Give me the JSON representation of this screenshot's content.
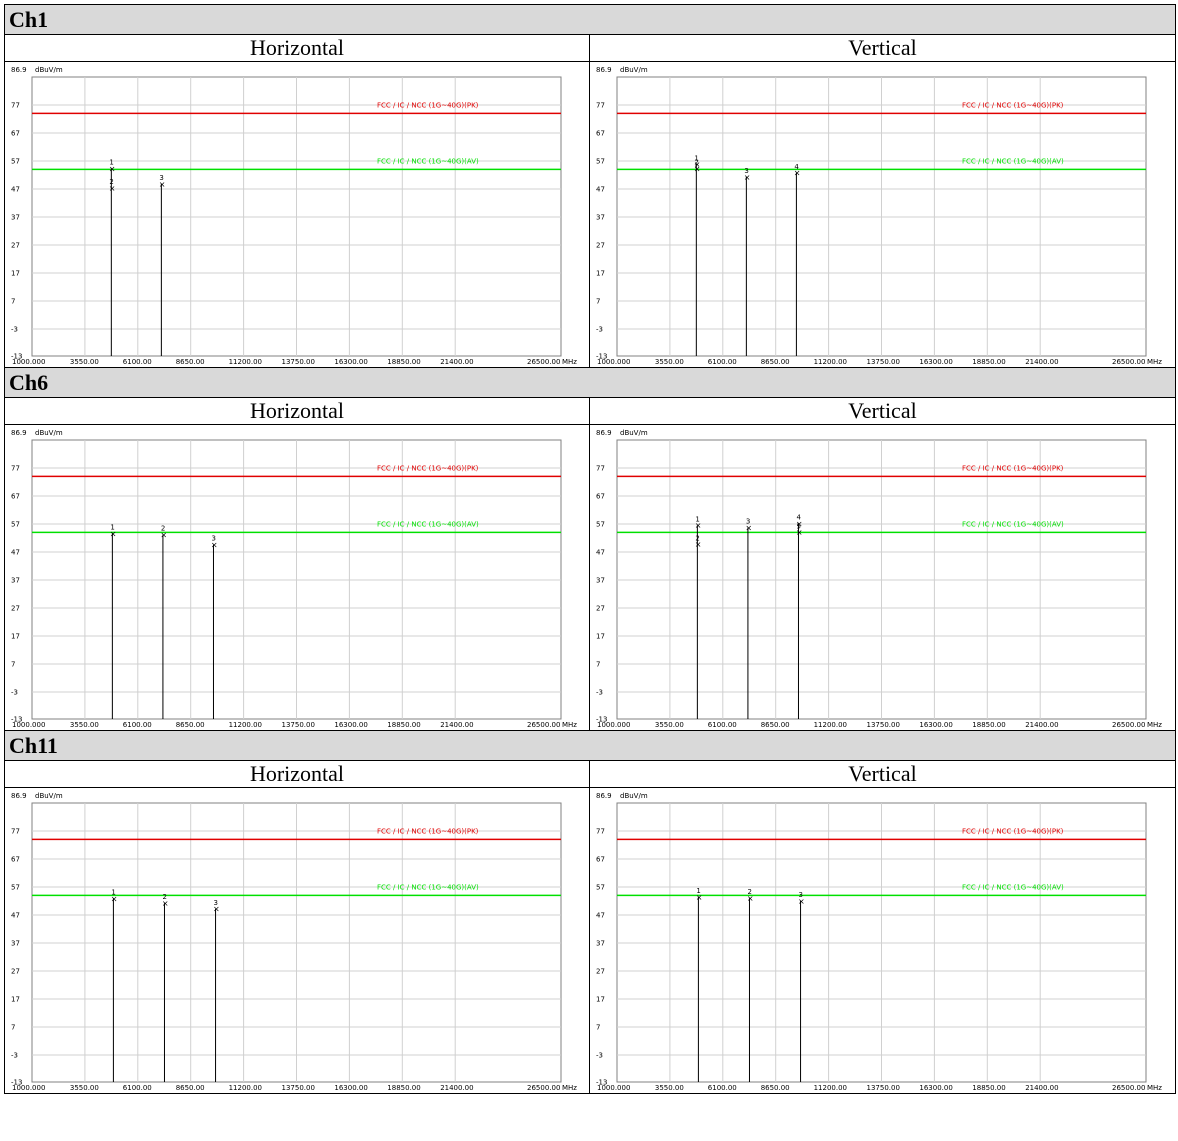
{
  "chart_data": [
    {
      "channel": "Ch1",
      "polarization": "Horizontal",
      "type": "scatter",
      "y_unit": "dBuV/m",
      "x_unit": "MHz",
      "y_top_label": "86.9",
      "yticks": [
        "77",
        "67",
        "57",
        "47",
        "37",
        "27",
        "17",
        "7",
        "-3",
        "-13"
      ],
      "ytick_values": [
        77,
        67,
        57,
        47,
        37,
        27,
        17,
        7,
        -3,
        -13
      ],
      "xticks": [
        "1000.000",
        "3550.00",
        "6100.00",
        "8650.00",
        "11200.00",
        "13750.00",
        "16300.00",
        "18850.00",
        "21400.00",
        "26500.00"
      ],
      "xtick_values": [
        1000,
        3550,
        6100,
        8650,
        11200,
        13750,
        16300,
        18850,
        21400,
        26500
      ],
      "xlim": [
        1000,
        26500
      ],
      "ylim": [
        -13,
        86.9
      ],
      "limit_lines": [
        {
          "label": "FCC / IC / NCC (1G~40G)(PK)",
          "value": 74,
          "color": "#e00000"
        },
        {
          "label": "FCC / IC / NCC (1G~40G)(AV)",
          "value": 54,
          "color": "#00e000"
        }
      ],
      "markers": [
        {
          "id": "1",
          "x": 4824,
          "y": 54.3
        },
        {
          "id": "2",
          "x": 4824,
          "y": 47.3
        },
        {
          "id": "3",
          "x": 7236,
          "y": 48.8
        }
      ]
    },
    {
      "channel": "Ch1",
      "polarization": "Vertical",
      "type": "scatter",
      "y_unit": "dBuV/m",
      "x_unit": "MHz",
      "y_top_label": "86.9",
      "yticks": [
        "77",
        "67",
        "57",
        "47",
        "37",
        "27",
        "17",
        "7",
        "-3",
        "-13"
      ],
      "ytick_values": [
        77,
        67,
        57,
        47,
        37,
        27,
        17,
        7,
        -3,
        -13
      ],
      "xticks": [
        "1000.000",
        "3550.00",
        "6100.00",
        "8650.00",
        "11200.00",
        "13750.00",
        "16300.00",
        "18850.00",
        "21400.00",
        "26500.00"
      ],
      "xtick_values": [
        1000,
        3550,
        6100,
        8650,
        11200,
        13750,
        16300,
        18850,
        21400,
        26500
      ],
      "xlim": [
        1000,
        26500
      ],
      "ylim": [
        -13,
        86.9
      ],
      "limit_lines": [
        {
          "label": "FCC / IC / NCC (1G~40G)(PK)",
          "value": 74,
          "color": "#e00000"
        },
        {
          "label": "FCC / IC / NCC (1G~40G)(AV)",
          "value": 54,
          "color": "#00e000"
        }
      ],
      "markers": [
        {
          "id": "1",
          "x": 4824,
          "y": 55.8
        },
        {
          "id": "2",
          "x": 4824,
          "y": 54.3
        },
        {
          "id": "3",
          "x": 7236,
          "y": 51.3
        },
        {
          "id": "4",
          "x": 9648,
          "y": 52.8
        }
      ]
    },
    {
      "channel": "Ch6",
      "polarization": "Horizontal",
      "type": "scatter",
      "y_unit": "dBuV/m",
      "x_unit": "MHz",
      "y_top_label": "86.9",
      "yticks": [
        "77",
        "67",
        "57",
        "47",
        "37",
        "27",
        "17",
        "7",
        "-3",
        "-13"
      ],
      "ytick_values": [
        77,
        67,
        57,
        47,
        37,
        27,
        17,
        7,
        -3,
        -13
      ],
      "xticks": [
        "1000.000",
        "3550.00",
        "6100.00",
        "8650.00",
        "11200.00",
        "13750.00",
        "16300.00",
        "18850.00",
        "21400.00",
        "26500.00"
      ],
      "xtick_values": [
        1000,
        3550,
        6100,
        8650,
        11200,
        13750,
        16300,
        18850,
        21400,
        26500
      ],
      "xlim": [
        1000,
        26500
      ],
      "ylim": [
        -13,
        86.9
      ],
      "limit_lines": [
        {
          "label": "FCC / IC / NCC (1G~40G)(PK)",
          "value": 74,
          "color": "#e00000"
        },
        {
          "label": "FCC / IC / NCC (1G~40G)(AV)",
          "value": 54,
          "color": "#00e000"
        }
      ],
      "markers": [
        {
          "id": "1",
          "x": 4874,
          "y": 53.6
        },
        {
          "id": "2",
          "x": 7311,
          "y": 53.2
        },
        {
          "id": "3",
          "x": 9748,
          "y": 49.6
        }
      ]
    },
    {
      "channel": "Ch6",
      "polarization": "Vertical",
      "type": "scatter",
      "y_unit": "dBuV/m",
      "x_unit": "MHz",
      "y_top_label": "86.9",
      "yticks": [
        "77",
        "67",
        "57",
        "47",
        "37",
        "27",
        "17",
        "7",
        "-3",
        "-13"
      ],
      "ytick_values": [
        77,
        67,
        57,
        47,
        37,
        27,
        17,
        7,
        -3,
        -13
      ],
      "xticks": [
        "1000.000",
        "3550.00",
        "6100.00",
        "8650.00",
        "11200.00",
        "13750.00",
        "16300.00",
        "18850.00",
        "21400.00",
        "26500.00"
      ],
      "xtick_values": [
        1000,
        3550,
        6100,
        8650,
        11200,
        13750,
        16300,
        18850,
        21400,
        26500
      ],
      "xlim": [
        1000,
        26500
      ],
      "ylim": [
        -13,
        86.9
      ],
      "limit_lines": [
        {
          "label": "FCC / IC / NCC (1G~40G)(PK)",
          "value": 74,
          "color": "#e00000"
        },
        {
          "label": "FCC / IC / NCC (1G~40G)(AV)",
          "value": 54,
          "color": "#00e000"
        }
      ],
      "markers": [
        {
          "id": "1",
          "x": 4874,
          "y": 56.5
        },
        {
          "id": "2",
          "x": 4874,
          "y": 49.7
        },
        {
          "id": "3",
          "x": 7311,
          "y": 55.7
        },
        {
          "id": "4",
          "x": 9748,
          "y": 57.1
        },
        {
          "id": "5",
          "x": 9748,
          "y": 54.0
        }
      ]
    },
    {
      "channel": "Ch11",
      "polarization": "Horizontal",
      "type": "scatter",
      "y_unit": "dBuV/m",
      "x_unit": "MHz",
      "y_top_label": "86.9",
      "yticks": [
        "77",
        "67",
        "57",
        "47",
        "37",
        "27",
        "17",
        "7",
        "-3",
        "-13"
      ],
      "ytick_values": [
        77,
        67,
        57,
        47,
        37,
        27,
        17,
        7,
        -3,
        -13
      ],
      "xticks": [
        "1000.000",
        "3550.00",
        "6100.00",
        "8650.00",
        "11200.00",
        "13750.00",
        "16300.00",
        "18850.00",
        "21400.00",
        "26500.00"
      ],
      "xtick_values": [
        1000,
        3550,
        6100,
        8650,
        11200,
        13750,
        16300,
        18850,
        21400,
        26500
      ],
      "xlim": [
        1000,
        26500
      ],
      "ylim": [
        -13,
        86.9
      ],
      "limit_lines": [
        {
          "label": "FCC / IC / NCC (1G~40G)(PK)",
          "value": 74,
          "color": "#e00000"
        },
        {
          "label": "FCC / IC / NCC (1G~40G)(AV)",
          "value": 54,
          "color": "#00e000"
        }
      ],
      "markers": [
        {
          "id": "1",
          "x": 4924,
          "y": 52.9
        },
        {
          "id": "2",
          "x": 7386,
          "y": 51.2
        },
        {
          "id": "3",
          "x": 9848,
          "y": 49.2
        }
      ]
    },
    {
      "channel": "Ch11",
      "polarization": "Vertical",
      "type": "scatter",
      "y_unit": "dBuV/m",
      "x_unit": "MHz",
      "y_top_label": "86.9",
      "yticks": [
        "77",
        "67",
        "57",
        "47",
        "37",
        "27",
        "17",
        "7",
        "-3",
        "-13"
      ],
      "ytick_values": [
        77,
        67,
        57,
        47,
        37,
        27,
        17,
        7,
        -3,
        -13
      ],
      "xticks": [
        "1000.000",
        "3550.00",
        "6100.00",
        "8650.00",
        "11200.00",
        "13750.00",
        "16300.00",
        "18850.00",
        "21400.00",
        "26500.00"
      ],
      "xtick_values": [
        1000,
        3550,
        6100,
        8650,
        11200,
        13750,
        16300,
        18850,
        21400,
        26500
      ],
      "xlim": [
        1000,
        26500
      ],
      "ylim": [
        -13,
        86.9
      ],
      "limit_lines": [
        {
          "label": "FCC / IC / NCC (1G~40G)(PK)",
          "value": 74,
          "color": "#e00000"
        },
        {
          "label": "FCC / IC / NCC (1G~40G)(AV)",
          "value": 54,
          "color": "#00e000"
        }
      ],
      "markers": [
        {
          "id": "1",
          "x": 4924,
          "y": 53.4
        },
        {
          "id": "2",
          "x": 7386,
          "y": 53.0
        },
        {
          "id": "3",
          "x": 9848,
          "y": 52.0
        }
      ]
    }
  ],
  "sections": [
    {
      "channel": "Ch1",
      "left": "Horizontal",
      "right": "Vertical"
    },
    {
      "channel": "Ch6",
      "left": "Horizontal",
      "right": "Vertical"
    },
    {
      "channel": "Ch11",
      "left": "Horizontal",
      "right": "Vertical"
    }
  ]
}
